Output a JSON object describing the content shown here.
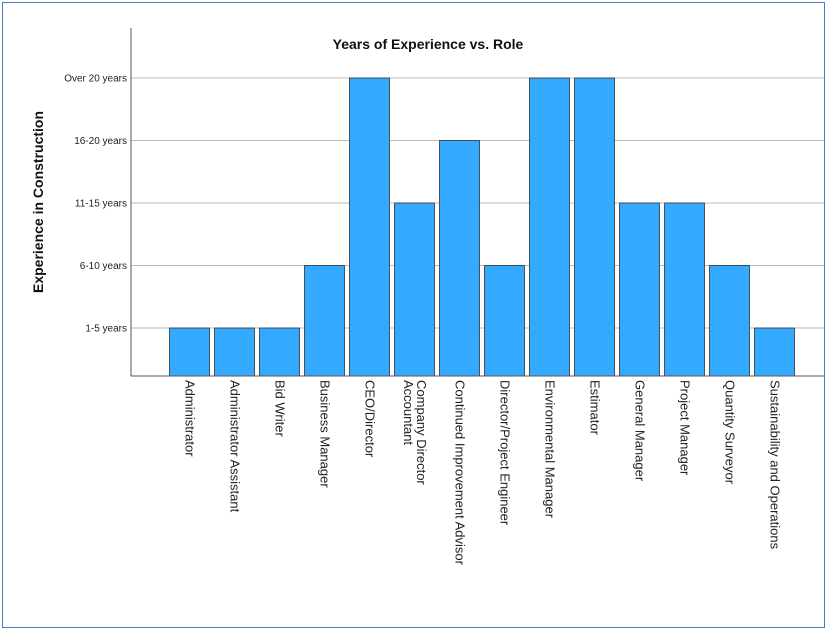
{
  "chart_data": {
    "type": "bar",
    "title": "Years of Experience vs. Role",
    "xlabel": "",
    "ylabel": "Experience in Construction",
    "y_levels": [
      "1-5 years",
      "6-10 years",
      "11-15 years",
      "16-20 years",
      "Over 20 years"
    ],
    "categories": [
      "Administrator",
      "Administrator Assistant",
      "Bid Writer",
      "Business Manager",
      "CEO/Director",
      "Company Director Accountant",
      "Continued Improvement Advisor",
      "Director/Project Engineer",
      "Environmental Manager",
      "Estimator",
      "General Manager",
      "Project Manager",
      "Quantity Surveyor",
      "Sustainability and Operations"
    ],
    "values": [
      1,
      1,
      1,
      2,
      5,
      3,
      4,
      2,
      5,
      5,
      3,
      3,
      2,
      1
    ],
    "value_labels": [
      "1-5 years",
      "1-5 years",
      "1-5 years",
      "6-10 years",
      "Over 20 years",
      "11-15 years",
      "16-20 years",
      "6-10 years",
      "Over 20 years",
      "Over 20 years",
      "11-15 years",
      "11-15 years",
      "6-10 years",
      "1-5 years"
    ],
    "ylim": [
      0,
      5
    ],
    "grid": true,
    "bar_color": "#33aaff",
    "bar_stroke": "#333333",
    "grid_color": "#bbbbbb"
  }
}
